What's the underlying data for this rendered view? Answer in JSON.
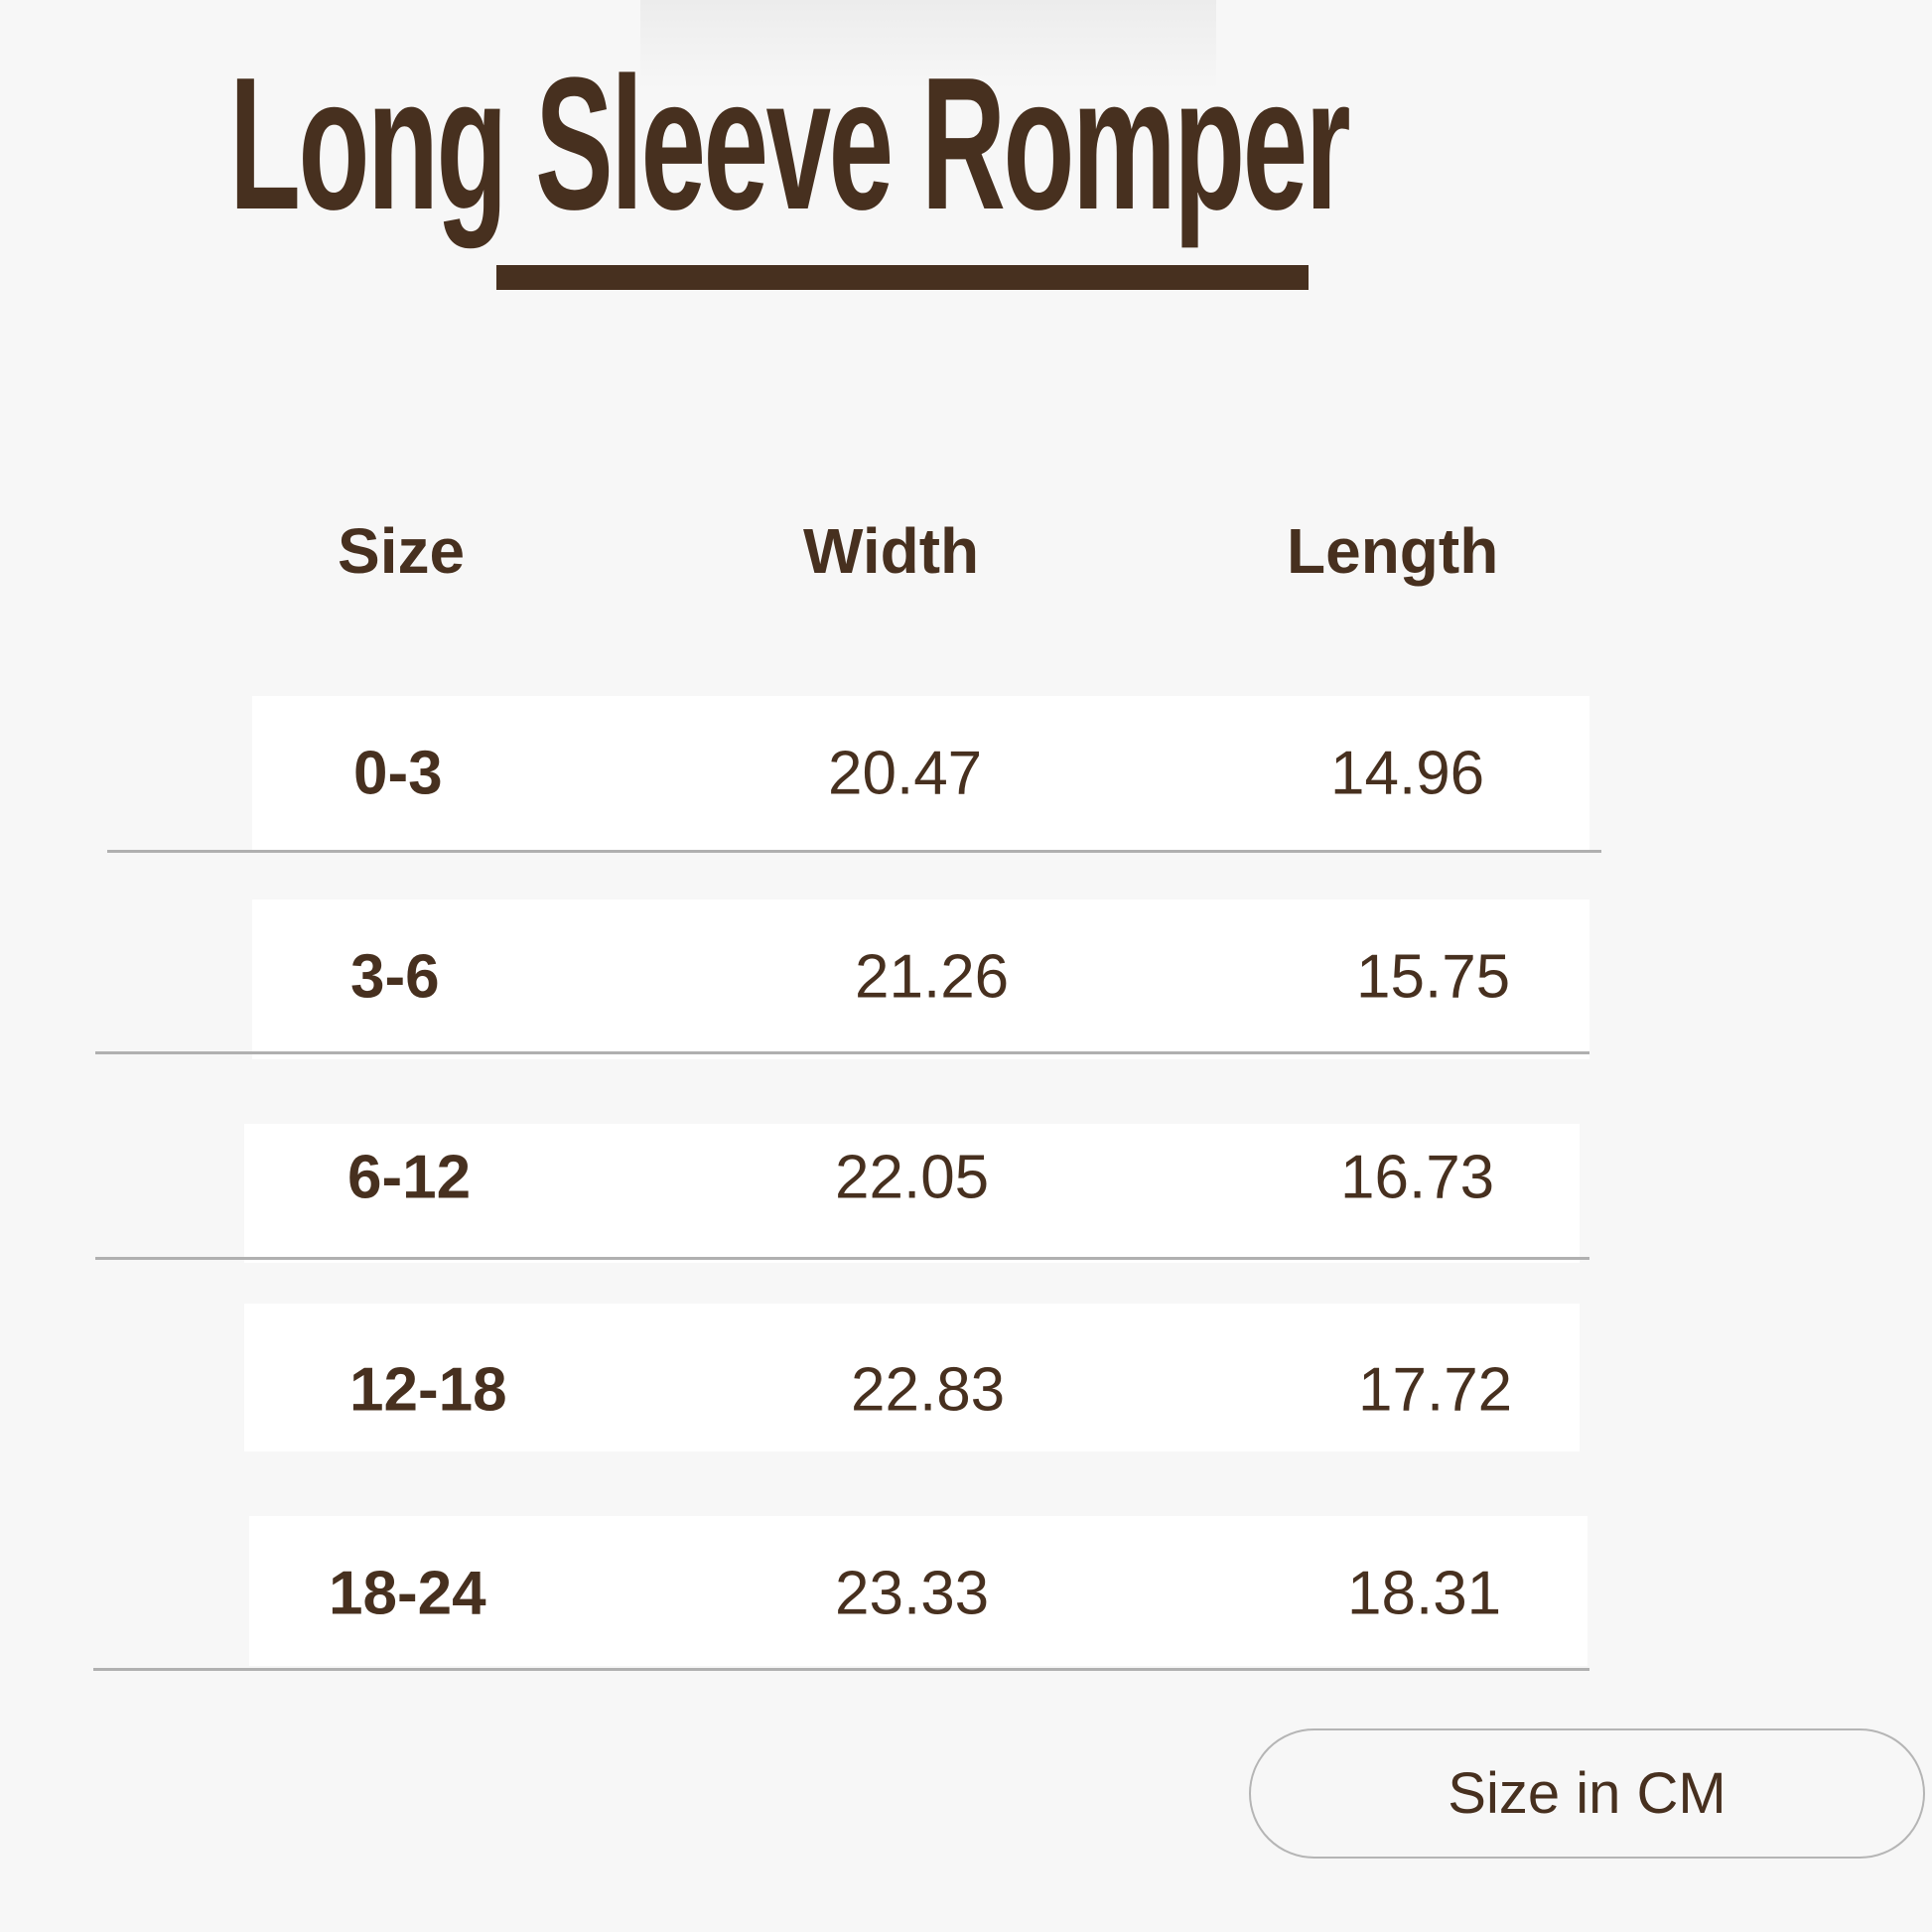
{
  "title": "Long Sleeve Romper",
  "colors": {
    "text": "#47301f",
    "background": "#f7f7f7",
    "row": "#ffffff"
  },
  "table": {
    "headers": [
      "Size",
      "Width",
      "Length"
    ],
    "rows": [
      [
        "0-3",
        "20.47",
        "14.96"
      ],
      [
        "3-6",
        "21.26",
        "15.75"
      ],
      [
        "6-12",
        "22.05",
        "16.73"
      ],
      [
        "12-18",
        "22.83",
        "17.72"
      ],
      [
        "18-24",
        "23.33",
        "18.31"
      ]
    ]
  },
  "unit_button": "Size in CM"
}
